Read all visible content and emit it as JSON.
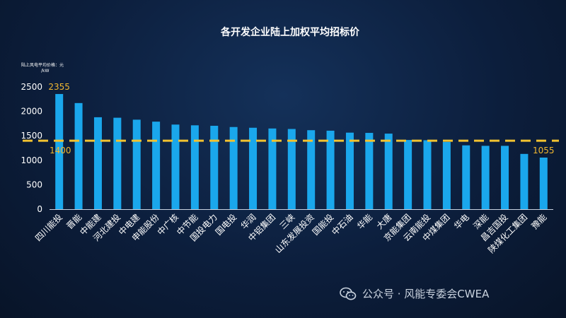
{
  "chart_data": {
    "type": "bar",
    "title": "各开发企业陆上加权平均招标价",
    "ylabel": "陆上风电平均价格：元/kW",
    "ylim": [
      0,
      2500
    ],
    "yticks": [
      0,
      500,
      1000,
      1500,
      2000,
      2500
    ],
    "categories": [
      "四川能投",
      "晋能",
      "中能建",
      "河北建投",
      "中电建",
      "申能股份",
      "中广核",
      "中节能",
      "国投电力",
      "国电投",
      "华润",
      "中铝集团",
      "三峡",
      "山东发展投资",
      "国能投",
      "中石油",
      "华能",
      "大唐",
      "京能集团",
      "云南能投",
      "中煤集团",
      "华电",
      "深能",
      "昌吉国投",
      "陕煤化工集团",
      "豫能"
    ],
    "values": [
      2355,
      2170,
      1880,
      1870,
      1830,
      1790,
      1730,
      1715,
      1705,
      1680,
      1665,
      1650,
      1640,
      1615,
      1605,
      1565,
      1560,
      1545,
      1415,
      1410,
      1375,
      1305,
      1295,
      1295,
      1130,
      1055
    ],
    "reference_line": {
      "value": 1400,
      "label": "1400",
      "color": "#f2c230"
    },
    "data_labels": [
      {
        "index": 0,
        "text": "2355"
      },
      {
        "index": 25,
        "text": "1055"
      }
    ],
    "bar_color": "#1aa7ec",
    "grid": false
  },
  "watermark": {
    "icon": "wechat-icon",
    "text": "公众号 · 风能专委会CWEA"
  }
}
